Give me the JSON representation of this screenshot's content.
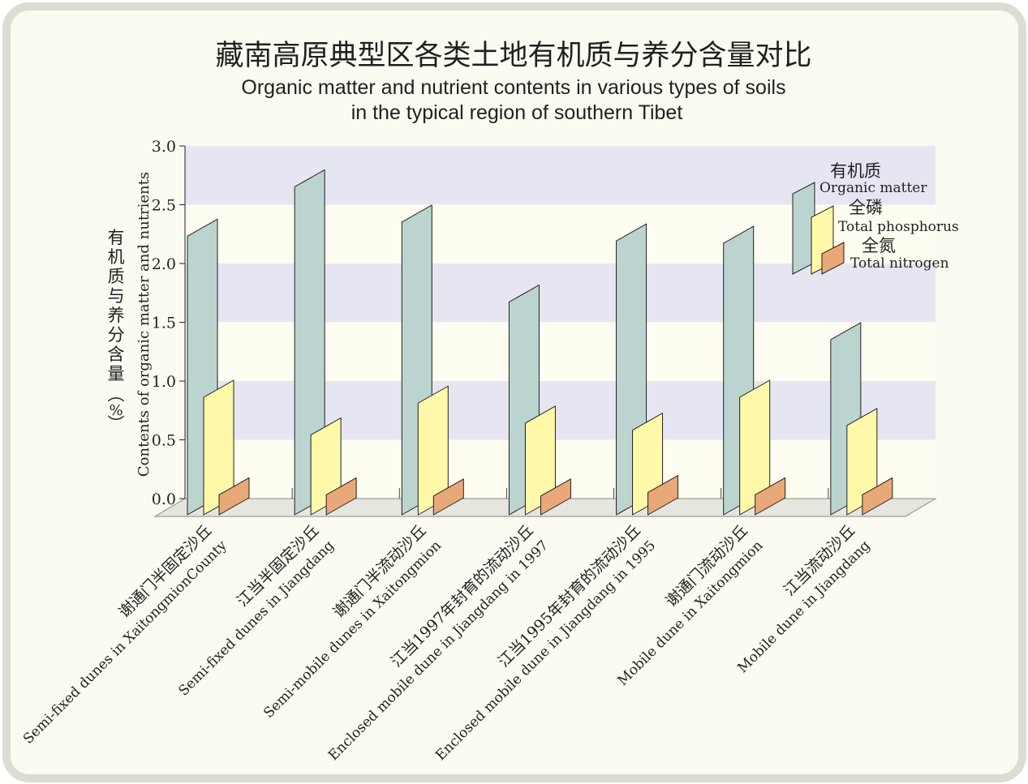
{
  "title_cn": "藏南高原典型区各类土地有机质与养分含量对比",
  "title_en_line1": "Organic matter and nutrient contents in various types of soils",
  "title_en_line2": "in the typical region of southern Tibet",
  "colors": {
    "frame_border": "#dcdcd2",
    "frame_bg": "#fbfbf2",
    "plot_band": "#e6e6f3",
    "plot_light": "#fdfdf1",
    "floor": "#e6e6e1",
    "organic_matter": "#bcd4cf",
    "total_phosphorus": "#fef9a9",
    "total_nitrogen": "#e8a878"
  },
  "chart_data": {
    "type": "bar",
    "title": "藏南高原典型区各类土地有机质与养分含量对比 / Organic matter and nutrient contents in various types of soils in the typical region of southern Tibet",
    "ylabel_cn": "有机质与养分含量（%）",
    "ylabel_en": "Contents of organic matter and nutrients",
    "ylim": [
      0,
      3.0
    ],
    "yticks": [
      "0.0",
      "0.5",
      "1.0",
      "1.5",
      "2.0",
      "2.5",
      "3.0"
    ],
    "grid": "alternating horizontal bands",
    "legend_position": "top-right",
    "categories": [
      {
        "cn": "谢通门半固定沙丘",
        "en": "Semi-fixed dunes in XaitongmionCounty"
      },
      {
        "cn": "江当半固定沙丘",
        "en": "Semi-fixed dunes in Jiangdang"
      },
      {
        "cn": "谢通门半流动沙丘",
        "en": "Semi-mobile dunes in Xaitongmion"
      },
      {
        "cn": "江当1997年封育的流动沙丘",
        "en": "Enclosed mobile dune in Jiangdang in 1997"
      },
      {
        "cn": "江当1995年封育的流动沙丘",
        "en": "Enclosed mobile dune in Jiangdang in 1995"
      },
      {
        "cn": "谢通门流动沙丘",
        "en": "Mobile dune in Xaitongmion"
      },
      {
        "cn": "江当流动沙丘",
        "en": "Mobile dune in Jiangdang"
      }
    ],
    "series": [
      {
        "name_cn": "有机质",
        "name_en": "Organic matter",
        "values": [
          2.37,
          2.79,
          2.49,
          1.81,
          2.33,
          2.31,
          1.49
        ]
      },
      {
        "name_cn": "全磷",
        "name_en": "Total phosphorus",
        "values": [
          1.0,
          0.68,
          0.95,
          0.78,
          0.72,
          1.0,
          0.76
        ]
      },
      {
        "name_cn": "全氮",
        "name_en": "Total nitrogen",
        "values": [
          0.17,
          0.17,
          0.16,
          0.16,
          0.19,
          0.17,
          0.17
        ]
      }
    ]
  }
}
